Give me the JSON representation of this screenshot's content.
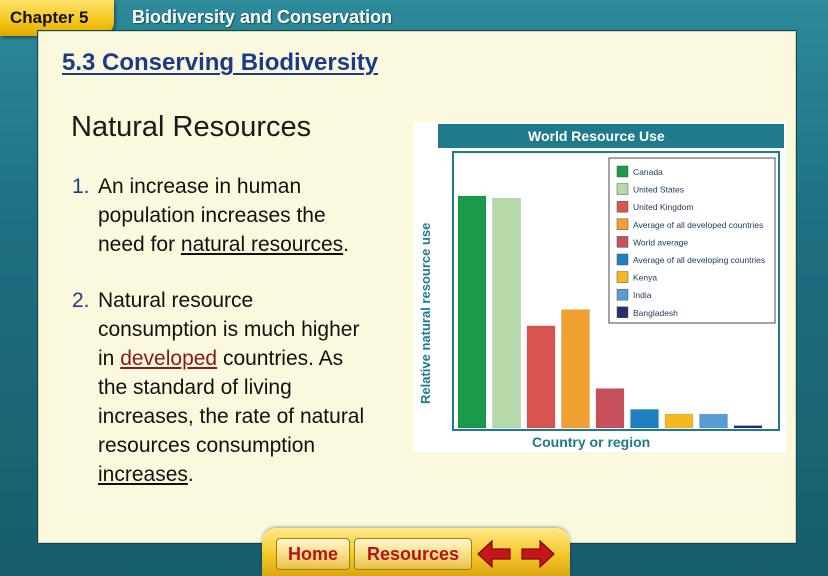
{
  "header": {
    "chapter_label": "Chapter 5",
    "title": "Biodiversity and Conservation"
  },
  "section_title": "5.3 Conserving Biodiversity",
  "slide_heading": "Natural Resources",
  "points": [
    {
      "number": "1.",
      "lines": [
        {
          "text_before": "An increase in human",
          "link": "",
          "text_after": ""
        },
        {
          "text_before": "population increases the",
          "link": "",
          "text_after": ""
        },
        {
          "text_before": "need for ",
          "link": "natural resources",
          "text_after": "."
        }
      ]
    },
    {
      "number": "2.",
      "lines": [
        {
          "text_before": "Natural resource",
          "link": "",
          "text_after": ""
        },
        {
          "text_before": "consumption is much higher",
          "link": "",
          "text_after": ""
        },
        {
          "text_before": "in ",
          "link": "developed",
          "text_after": " countries.  As"
        },
        {
          "text_before": "the standard of living",
          "link": "",
          "text_after": ""
        },
        {
          "text_before": "increases, the rate of natural",
          "link": "",
          "text_after": ""
        },
        {
          "text_before": "resources consumption",
          "link": "",
          "text_after": ""
        },
        {
          "text_before": "",
          "link": "increases",
          "text_after": "."
        }
      ]
    }
  ],
  "chart_data": {
    "type": "bar",
    "title": "World Resource Use",
    "xlabel": "Country or region",
    "ylabel": "Relative natural resource use",
    "legend_position": "top-right",
    "categories": [
      "Canada",
      "United States",
      "United Kingdom",
      "Average of all developed countries",
      "World average",
      "Average of all developing countries",
      "Kenya",
      "India",
      "Bangladesh"
    ],
    "values": [
      100,
      99,
      44,
      51,
      17,
      8,
      6,
      6,
      1
    ],
    "colors": [
      "#1a9a4a",
      "#b5d9a8",
      "#d9534f",
      "#f0a030",
      "#c8505a",
      "#1e7fc0",
      "#f5b820",
      "#5a9bd4",
      "#27306e"
    ],
    "ylim": [
      0,
      110
    ],
    "grid": false
  },
  "footer": {
    "home_label": "Home",
    "resources_label": "Resources",
    "back_icon": "arrow-left-icon",
    "forward_icon": "arrow-right-icon"
  }
}
